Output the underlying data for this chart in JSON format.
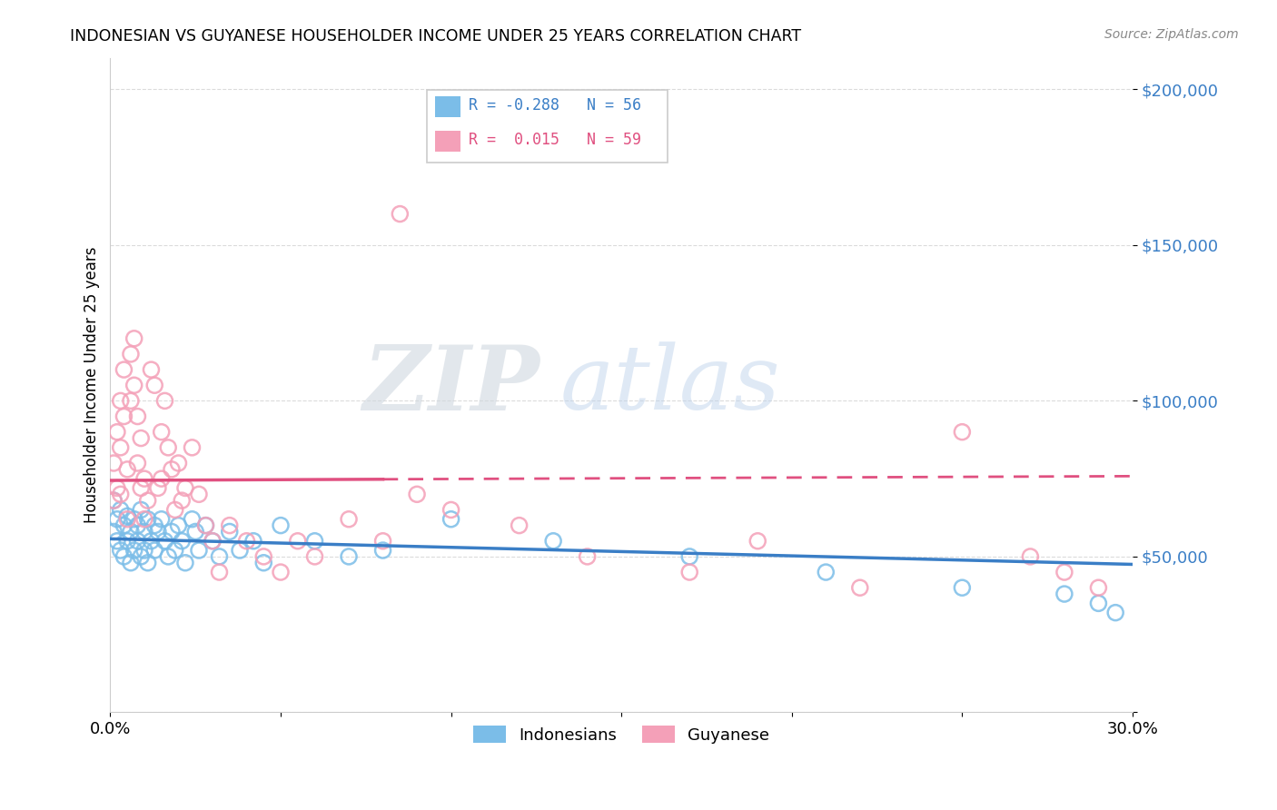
{
  "title": "INDONESIAN VS GUYANESE HOUSEHOLDER INCOME UNDER 25 YEARS CORRELATION CHART",
  "source": "Source: ZipAtlas.com",
  "ylabel": "Householder Income Under 25 years",
  "legend_label1": "Indonesians",
  "legend_label2": "Guyanese",
  "r1": -0.288,
  "n1": 56,
  "r2": 0.015,
  "n2": 59,
  "color_blue": "#7BBDE8",
  "color_pink": "#F4A0B8",
  "color_blue_line": "#3A7EC6",
  "color_pink_line": "#E05080",
  "color_grid": "#CCCCCC",
  "x_min": 0.0,
  "x_max": 0.3,
  "y_min": 0,
  "y_max": 210000,
  "y_ticks": [
    0,
    50000,
    100000,
    150000,
    200000
  ],
  "y_tick_labels": [
    "",
    "$50,000",
    "$100,000",
    "$150,000",
    "$200,000"
  ],
  "watermark_zip": "ZIP",
  "watermark_atlas": "atlas",
  "indonesian_x": [
    0.001,
    0.001,
    0.002,
    0.002,
    0.003,
    0.003,
    0.004,
    0.004,
    0.005,
    0.005,
    0.006,
    0.006,
    0.007,
    0.007,
    0.008,
    0.008,
    0.009,
    0.009,
    0.01,
    0.01,
    0.011,
    0.011,
    0.012,
    0.013,
    0.013,
    0.014,
    0.015,
    0.016,
    0.017,
    0.018,
    0.019,
    0.02,
    0.021,
    0.022,
    0.024,
    0.025,
    0.026,
    0.028,
    0.03,
    0.032,
    0.035,
    0.038,
    0.042,
    0.045,
    0.05,
    0.06,
    0.07,
    0.08,
    0.1,
    0.13,
    0.17,
    0.21,
    0.25,
    0.28,
    0.29,
    0.295
  ],
  "indonesian_y": [
    68000,
    58000,
    62000,
    55000,
    65000,
    52000,
    60000,
    50000,
    63000,
    55000,
    58000,
    48000,
    62000,
    52000,
    60000,
    55000,
    65000,
    50000,
    58000,
    52000,
    62000,
    48000,
    55000,
    60000,
    52000,
    58000,
    62000,
    55000,
    50000,
    58000,
    52000,
    60000,
    55000,
    48000,
    62000,
    58000,
    52000,
    60000,
    55000,
    50000,
    58000,
    52000,
    55000,
    48000,
    60000,
    55000,
    50000,
    52000,
    62000,
    55000,
    50000,
    45000,
    40000,
    38000,
    35000,
    32000
  ],
  "guyanese_x": [
    0.001,
    0.001,
    0.002,
    0.002,
    0.003,
    0.003,
    0.003,
    0.004,
    0.004,
    0.005,
    0.005,
    0.006,
    0.006,
    0.007,
    0.007,
    0.008,
    0.008,
    0.009,
    0.009,
    0.01,
    0.01,
    0.011,
    0.012,
    0.013,
    0.014,
    0.015,
    0.015,
    0.016,
    0.017,
    0.018,
    0.019,
    0.02,
    0.021,
    0.022,
    0.024,
    0.026,
    0.028,
    0.03,
    0.032,
    0.035,
    0.04,
    0.045,
    0.05,
    0.055,
    0.06,
    0.07,
    0.08,
    0.085,
    0.09,
    0.1,
    0.12,
    0.14,
    0.17,
    0.19,
    0.22,
    0.25,
    0.27,
    0.28,
    0.29
  ],
  "guyanese_y": [
    80000,
    68000,
    90000,
    72000,
    100000,
    85000,
    70000,
    110000,
    95000,
    78000,
    62000,
    115000,
    100000,
    120000,
    105000,
    95000,
    80000,
    88000,
    72000,
    75000,
    62000,
    68000,
    110000,
    105000,
    72000,
    90000,
    75000,
    100000,
    85000,
    78000,
    65000,
    80000,
    68000,
    72000,
    85000,
    70000,
    60000,
    55000,
    45000,
    60000,
    55000,
    50000,
    45000,
    55000,
    50000,
    62000,
    55000,
    160000,
    70000,
    65000,
    60000,
    50000,
    45000,
    55000,
    40000,
    90000,
    50000,
    45000,
    40000
  ]
}
